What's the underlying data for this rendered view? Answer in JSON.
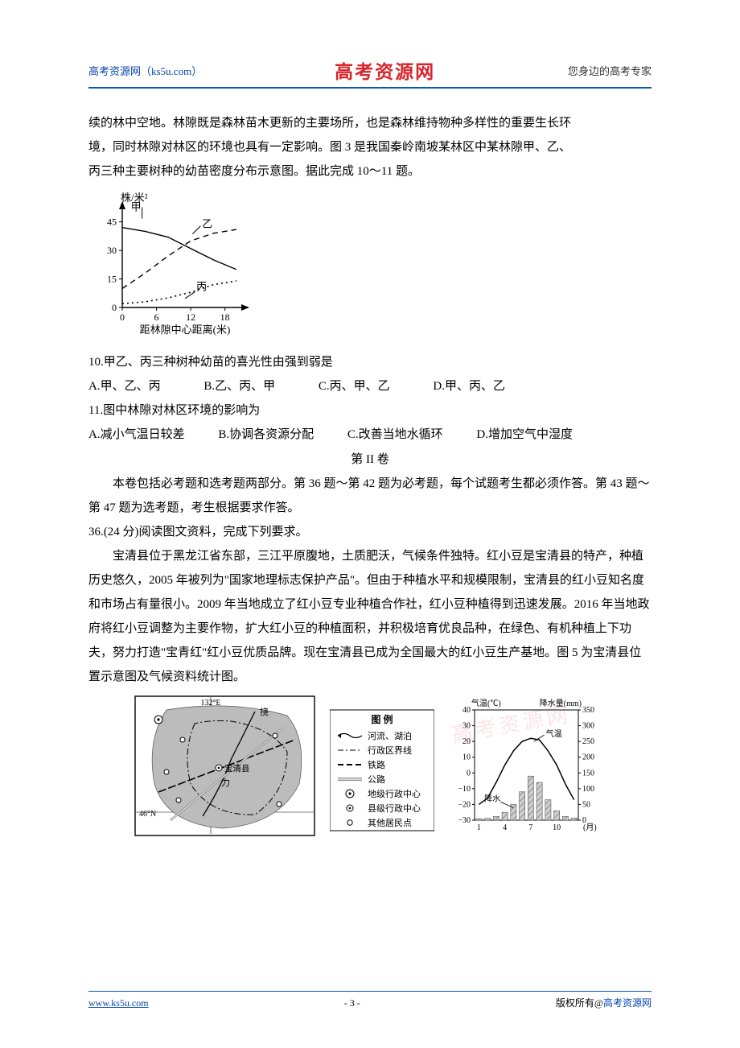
{
  "header": {
    "left": "高考资源网（ks5u.com）",
    "center": "高考资源网",
    "right": "您身边的高考专家"
  },
  "passage_intro": {
    "line1": "续的林中空地。林隙既是森林苗木更新的主要场所，也是森林维持物种多样性的重要生长环",
    "line2": "境，同时林隙对林区的环境也具有一定影响。图 3 是我国秦岭南坡某林区中某林隙甲、乙、",
    "line3": "丙三种主要树种的幼苗密度分布示意图。据此完成 10～11 题。"
  },
  "chart1": {
    "type": "line",
    "y_label": "株/米²",
    "x_label": "距林隙中心距离(米)",
    "x_ticks": [
      0,
      6,
      12,
      18
    ],
    "y_ticks": [
      0,
      15,
      30,
      45
    ],
    "xlim": [
      0,
      22
    ],
    "ylim": [
      0,
      55
    ],
    "axis_color": "#000000",
    "tick_fontsize": 12,
    "label_fontsize": 13,
    "background": "#ffffff",
    "series": [
      {
        "name": "甲",
        "label_xy": [
          1.5,
          51
        ],
        "style": "solid",
        "line_width": 1.4,
        "color": "#000000",
        "points": [
          [
            0,
            42
          ],
          [
            4,
            40
          ],
          [
            8,
            37
          ],
          [
            12,
            31
          ],
          [
            16,
            25
          ],
          [
            20,
            20
          ]
        ]
      },
      {
        "name": "乙",
        "label_xy": [
          14,
          42
        ],
        "style": "dashed",
        "line_width": 1.4,
        "color": "#000000",
        "points": [
          [
            0,
            10
          ],
          [
            4,
            18
          ],
          [
            8,
            27
          ],
          [
            12,
            35
          ],
          [
            16,
            39
          ],
          [
            20,
            41
          ]
        ]
      },
      {
        "name": "丙",
        "label_xy": [
          13,
          9
        ],
        "style": "dotted",
        "line_width": 1.6,
        "color": "#000000",
        "points": [
          [
            0,
            2
          ],
          [
            4,
            3
          ],
          [
            8,
            5
          ],
          [
            12,
            8
          ],
          [
            16,
            12
          ],
          [
            20,
            14
          ]
        ]
      }
    ]
  },
  "q10": {
    "stem": "10.甲乙、丙三种树种幼苗的喜光性由强到弱是",
    "A": "A.甲、乙、丙",
    "B": "B.乙、丙、甲",
    "C": "C.丙、甲、乙",
    "D": "D.甲、丙、乙"
  },
  "q11": {
    "stem": "11.图中林隙对林区环境的影响为",
    "A": "A.减小气温日较差",
    "B": "B.协调各资源分配",
    "C": "C.改善当地水循环",
    "D": "D.增加空气中湿度"
  },
  "section2_title": "第 II 卷",
  "section2_intro": {
    "p1": "本卷包括必考题和选考题两部分。第 36 题～第 42 题为必考题，每个试题考生都必须作答。第 43 题～第 47 题为选考题，考生根据要求作答。"
  },
  "q36": {
    "stem": "36.(24 分)阅读图文资料，完成下列要求。",
    "para": "宝清县位于黑龙江省东部，三江平原腹地，土质肥沃，气候条件独特。红小豆是宝清县的特产，种植历史悠久，2005 年被列为\"国家地理标志保护产品\"。但由于种植水平和规模限制，宝清县的红小豆知名度和市场占有量很小。2009 年当地成立了红小豆专业种植合作社，红小豆种植得到迅速发展。2016 年当地政府将红小豆调整为主要作物，扩大红小豆的种植面积，并积极培育优良品种，在绿色、有机种植上下功夫，努力打造\"宝青红\"红小豆优质品牌。现在宝清县已成为全国最大的红小豆生产基地。图 5 为宝清县位置示意图及气候资料统计图。"
  },
  "figure5": {
    "map": {
      "type": "map",
      "background": "#ffffff",
      "land_fill": "#bcbcbc",
      "border_color": "#000000",
      "lon_label": "132°E",
      "lat_label": "46°N",
      "center_label": "宝清县",
      "north_label": "挠",
      "river_label": "力",
      "legend_title": "图 例",
      "legend": [
        {
          "symbol": "river",
          "label": "河流、湖泊",
          "color": "#000000"
        },
        {
          "symbol": "dashdot",
          "label": "行政区界线",
          "color": "#000000"
        },
        {
          "symbol": "rail",
          "label": "铁路",
          "color": "#000000"
        },
        {
          "symbol": "doubleline",
          "label": "公路",
          "color": "#666666"
        },
        {
          "symbol": "circ-dot-big",
          "label": "地级行政中心",
          "color": "#000000"
        },
        {
          "symbol": "circ-dot",
          "label": "县级行政中心",
          "color": "#000000"
        },
        {
          "symbol": "circ",
          "label": "其他居民点",
          "color": "#000000"
        }
      ]
    },
    "climate": {
      "type": "climograph",
      "title_left": "气温(℃)",
      "title_right": "降水量(mm)",
      "temp_label": "气温",
      "precip_label": "降水",
      "x_ticks": [
        1,
        4,
        7,
        10
      ],
      "x_unit": "(月)",
      "temp_axis": {
        "ticks": [
          -30,
          -20,
          -10,
          0,
          10,
          20,
          30,
          40
        ],
        "ylim": [
          -30,
          40
        ]
      },
      "precip_axis": {
        "ticks": [
          0,
          50,
          100,
          150,
          200,
          250,
          300,
          350
        ],
        "ylim": [
          0,
          350
        ]
      },
      "temp_color": "#000000",
      "precip_fill": "#cfcfcf",
      "precip_hatch": "#6a6a6a",
      "axis_color": "#000000",
      "background": "#ffffff",
      "fontsize": 10,
      "temp_values": [
        -20,
        -16,
        -6,
        5,
        14,
        20,
        22,
        21,
        14,
        5,
        -7,
        -17
      ],
      "precip_values": [
        5,
        6,
        12,
        25,
        50,
        90,
        140,
        120,
        65,
        30,
        12,
        7
      ]
    }
  },
  "watermark_text": "高考资源网",
  "footer": {
    "left": "www.ks5u.com",
    "center": "- 3 -",
    "right_prefix": "版权所有@",
    "right_brand": "高考资源网"
  }
}
